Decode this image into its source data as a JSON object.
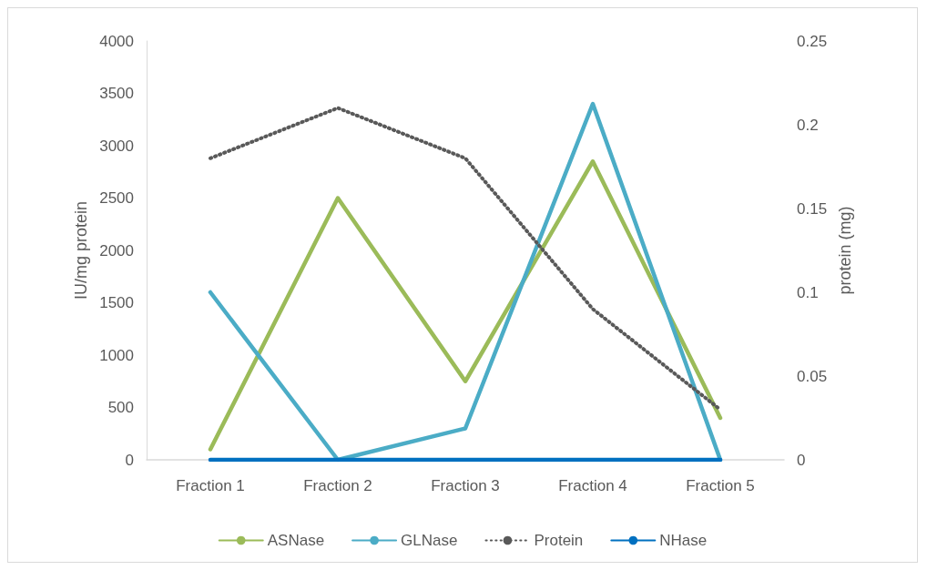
{
  "chart_data": {
    "type": "line",
    "categories": [
      "Fraction 1",
      "Fraction 2",
      "Fraction 3",
      "Fraction 4",
      "Fraction 5"
    ],
    "ylabel": "IU/mg protein",
    "y2label": "protein (mg)",
    "ylim": [
      0,
      4000
    ],
    "yticks": [
      0,
      500,
      1000,
      1500,
      2000,
      2500,
      3000,
      3500,
      4000
    ],
    "y2lim": [
      0,
      0.25
    ],
    "y2ticks": [
      0,
      0.05,
      0.1,
      0.15,
      0.2,
      0.25
    ],
    "grid": false,
    "legend": "bottom",
    "marker": "none",
    "series": [
      {
        "name": "ASNase",
        "color": "#9bbb59",
        "values": [
          100,
          2500,
          750,
          2850,
          400
        ]
      },
      {
        "name": "GLNase",
        "color": "#4bacc6",
        "values": [
          1600,
          0,
          300,
          3400,
          0
        ]
      },
      {
        "name": "Protein",
        "color": "#595959",
        "axis": "y2",
        "line_style": "dotted",
        "values": [
          0.18,
          0.21,
          0.18,
          0.09,
          0.03
        ]
      },
      {
        "name": "NHase",
        "color": "#0070c0",
        "values": [
          0,
          0,
          0,
          0,
          0
        ]
      }
    ]
  }
}
